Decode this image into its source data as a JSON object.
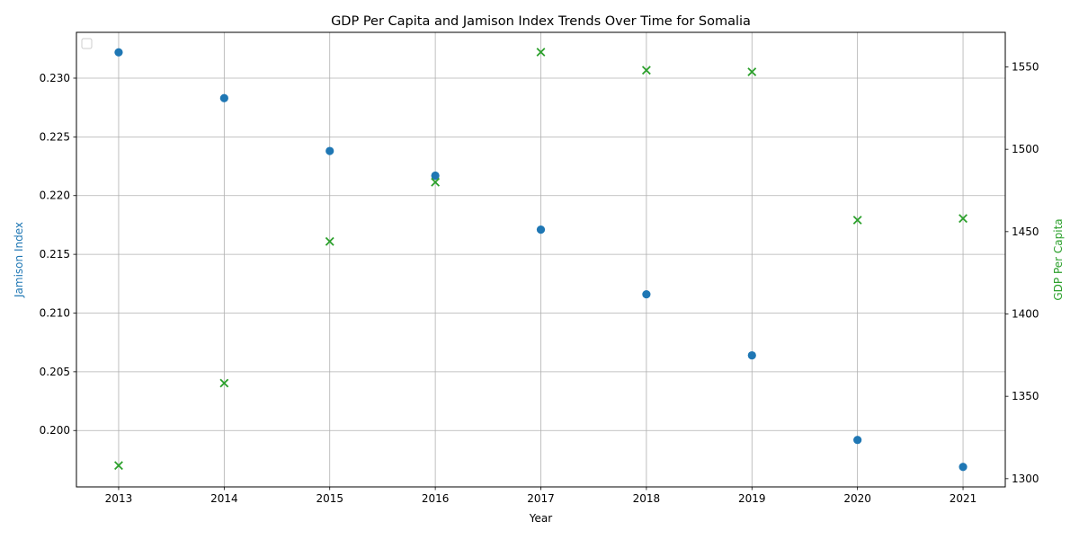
{
  "chart_data": {
    "type": "scatter",
    "title": "GDP Per Capita and Jamison Index Trends Over Time for Somalia",
    "xlabel": "Year",
    "ylabel_left": "Jamison Index",
    "ylabel_right": "GDP Per Capita",
    "x": [
      2013,
      2014,
      2015,
      2016,
      2017,
      2018,
      2019,
      2020,
      2021
    ],
    "xlim": [
      2012.6,
      2021.4
    ],
    "x_ticks": [
      "2013",
      "2014",
      "2015",
      "2016",
      "2017",
      "2018",
      "2019",
      "2020",
      "2021"
    ],
    "grid": true,
    "legend": "top-left (empty)",
    "series": [
      {
        "axis": "left",
        "marker": "circle",
        "color": "#1f77b4",
        "values": [
          0.2322,
          0.2283,
          0.2238,
          0.2217,
          0.2171,
          0.2116,
          0.2064,
          0.1992,
          0.1969
        ]
      },
      {
        "axis": "right",
        "marker": "x",
        "color": "#2ca02c",
        "values": [
          1308,
          1358,
          1444,
          1480,
          1559,
          1548,
          1547,
          1457,
          1458
        ]
      }
    ],
    "ylim_left": [
      0.1952,
      0.2339
    ],
    "y_ticks_left": [
      "0.200",
      "0.205",
      "0.210",
      "0.215",
      "0.220",
      "0.225",
      "0.230"
    ],
    "ylim_right": [
      1295,
      1571
    ],
    "y_ticks_right": [
      "1300",
      "1350",
      "1400",
      "1450",
      "1500",
      "1550"
    ]
  }
}
